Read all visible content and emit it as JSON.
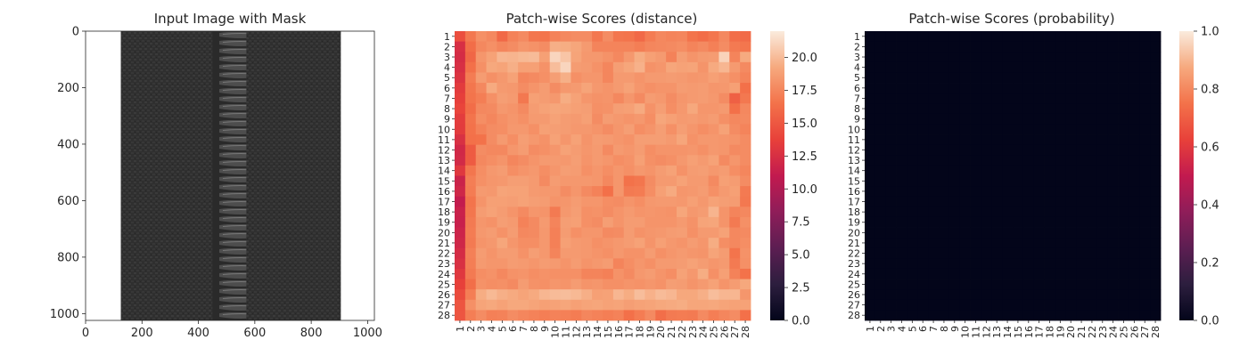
{
  "chart_data": [
    {
      "type": "image",
      "title": "Input Image with Mask",
      "xticks": [
        "0",
        "200",
        "400",
        "600",
        "800",
        "1000"
      ],
      "yticks": [
        "0",
        "200",
        "400",
        "600",
        "800",
        "1000"
      ],
      "xlim": [
        0,
        1024
      ],
      "ylim": [
        1024,
        0
      ],
      "image_content": "zipper-photo",
      "zipper_x_range": [
        125,
        905
      ],
      "teeth_x_range": [
        450,
        570
      ]
    },
    {
      "type": "heatmap",
      "title": "Patch-wise Scores (distance)",
      "rows": 28,
      "cols": 28,
      "xticklabels": [
        "1",
        "2",
        "3",
        "4",
        "5",
        "6",
        "7",
        "8",
        "9",
        "10",
        "11",
        "12",
        "13",
        "14",
        "15",
        "16",
        "17",
        "18",
        "19",
        "20",
        "21",
        "22",
        "23",
        "24",
        "25",
        "26",
        "27",
        "28"
      ],
      "yticklabels": [
        "1",
        "2",
        "3",
        "4",
        "5",
        "6",
        "7",
        "8",
        "9",
        "10",
        "11",
        "12",
        "13",
        "14",
        "15",
        "16",
        "17",
        "18",
        "19",
        "20",
        "21",
        "22",
        "23",
        "24",
        "25",
        "26",
        "27",
        "28"
      ],
      "colorbar": {
        "min": 0,
        "max": 22,
        "ticks": [
          "0.0",
          "2.5",
          "5.0",
          "7.5",
          "10.0",
          "12.5",
          "15.0",
          "17.5",
          "20.0"
        ]
      },
      "values": [
        [
          14.5,
          16.8,
          18.0,
          17.6,
          16.0,
          17.3,
          17.7,
          16.7,
          16.6,
          17.3,
          17.6,
          17.8,
          17.8,
          16.8,
          17.8,
          16.7,
          16.6,
          16.0,
          17.0,
          17.6,
          17.4,
          17.5,
          16.6,
          16.2,
          16.7,
          17.6,
          16.3,
          16.1
        ],
        [
          12.5,
          16.2,
          17.6,
          18.0,
          17.5,
          17.8,
          18.3,
          18.1,
          17.8,
          19.5,
          19.4,
          19.1,
          18.5,
          17.4,
          17.4,
          17.4,
          17.4,
          17.1,
          17.5,
          17.6,
          17.7,
          17.9,
          17.4,
          17.7,
          17.2,
          17.8,
          16.9,
          16.7
        ],
        [
          12.3,
          15.8,
          18.3,
          18.9,
          19.8,
          19.7,
          19.9,
          20.0,
          18.8,
          21.1,
          20.4,
          19.0,
          18.4,
          18.4,
          18.1,
          17.6,
          18.4,
          19.4,
          18.8,
          18.5,
          17.3,
          18.7,
          18.2,
          18.5,
          18.6,
          21.0,
          17.4,
          19.3
        ],
        [
          12.5,
          16.4,
          18.0,
          19.2,
          19.0,
          19.5,
          18.8,
          18.8,
          18.1,
          20.1,
          21.1,
          18.6,
          18.5,
          18.1,
          17.5,
          18.7,
          19.1,
          19.6,
          18.1,
          18.3,
          19.1,
          18.9,
          19.0,
          18.2,
          19.3,
          19.8,
          18.5,
          17.7
        ],
        [
          12.8,
          17.0,
          18.6,
          18.0,
          18.4,
          18.9,
          17.5,
          17.7,
          18.0,
          18.7,
          19.5,
          18.0,
          18.3,
          18.3,
          17.5,
          18.5,
          18.5,
          18.2,
          18.5,
          18.5,
          18.6,
          18.5,
          18.3,
          18.4,
          18.8,
          18.5,
          18.0,
          17.4
        ],
        [
          13.3,
          16.7,
          17.6,
          19.3,
          18.5,
          18.4,
          17.8,
          18.2,
          18.6,
          17.8,
          18.4,
          18.5,
          19.0,
          18.4,
          18.2,
          18.5,
          18.9,
          18.3,
          18.0,
          18.2,
          18.2,
          18.6,
          18.5,
          18.6,
          18.3,
          18.4,
          18.8,
          16.4
        ],
        [
          13.6,
          16.6,
          17.1,
          18.0,
          18.7,
          18.5,
          16.8,
          18.8,
          18.6,
          18.4,
          19.4,
          18.9,
          18.3,
          18.1,
          18.2,
          17.6,
          18.3,
          17.7,
          18.6,
          18.4,
          17.8,
          18.3,
          18.5,
          18.6,
          18.4,
          17.8,
          15.5,
          16.8
        ],
        [
          13.9,
          16.2,
          17.6,
          17.7,
          18.4,
          18.2,
          17.7,
          18.6,
          18.9,
          19.1,
          19.0,
          18.8,
          18.7,
          18.0,
          18.1,
          18.7,
          18.8,
          19.3,
          18.1,
          18.7,
          17.9,
          18.4,
          19.2,
          18.3,
          18.3,
          18.5,
          16.4,
          17.6
        ],
        [
          13.4,
          16.6,
          17.9,
          17.5,
          18.0,
          18.3,
          18.0,
          18.5,
          18.5,
          18.9,
          18.6,
          18.5,
          18.8,
          17.8,
          18.6,
          18.4,
          18.2,
          18.4,
          17.9,
          19.1,
          18.8,
          18.5,
          18.6,
          18.4,
          18.6,
          18.0,
          17.6,
          17.7
        ],
        [
          13.3,
          16.5,
          17.3,
          17.8,
          17.9,
          18.4,
          18.4,
          18.0,
          18.8,
          18.7,
          18.6,
          18.4,
          18.4,
          18.2,
          17.8,
          18.3,
          18.7,
          17.9,
          18.2,
          18.7,
          18.0,
          18.7,
          18.3,
          17.9,
          18.2,
          18.9,
          17.8,
          17.4
        ],
        [
          12.6,
          16.4,
          16.5,
          17.8,
          18.5,
          17.9,
          18.7,
          18.4,
          18.1,
          18.9,
          18.3,
          18.9,
          18.2,
          18.6,
          18.5,
          18.3,
          18.1,
          18.7,
          18.7,
          18.7,
          18.5,
          19.1,
          18.1,
          18.4,
          18.4,
          18.3,
          18.2,
          17.8
        ],
        [
          12.0,
          15.2,
          17.8,
          17.6,
          17.6,
          18.3,
          18.6,
          17.8,
          18.0,
          18.3,
          18.9,
          18.6,
          18.3,
          18.5,
          17.7,
          18.5,
          18.3,
          18.6,
          17.9,
          18.2,
          18.2,
          18.2,
          18.3,
          18.0,
          18.4,
          18.3,
          17.7,
          17.8
        ],
        [
          12.1,
          15.2,
          17.6,
          17.9,
          18.2,
          17.5,
          17.8,
          18.2,
          18.5,
          18.5,
          18.4,
          18.7,
          18.2,
          18.5,
          18.3,
          17.9,
          18.1,
          18.8,
          18.0,
          17.8,
          18.0,
          18.4,
          18.8,
          18.5,
          18.9,
          17.7,
          18.3,
          17.8
        ],
        [
          13.1,
          16.7,
          17.9,
          18.4,
          18.6,
          17.9,
          18.2,
          18.4,
          17.9,
          18.3,
          18.7,
          18.6,
          18.0,
          18.3,
          17.9,
          18.3,
          18.0,
          18.4,
          18.2,
          18.6,
          18.9,
          18.1,
          18.6,
          18.7,
          18.4,
          18.6,
          17.9,
          17.5
        ],
        [
          11.6,
          17.1,
          18.0,
          18.3,
          18.4,
          18.7,
          18.7,
          18.5,
          17.7,
          18.6,
          18.4,
          18.4,
          18.4,
          18.3,
          17.6,
          18.3,
          16.5,
          16.7,
          17.8,
          18.5,
          18.5,
          18.9,
          18.5,
          18.5,
          17.7,
          18.8,
          18.6,
          17.8
        ],
        [
          11.9,
          17.0,
          18.5,
          18.4,
          19.0,
          18.9,
          18.9,
          18.5,
          18.4,
          18.4,
          17.8,
          18.3,
          17.7,
          17.3,
          16.4,
          18.3,
          16.9,
          17.0,
          17.9,
          18.8,
          19.3,
          18.3,
          18.4,
          18.6,
          18.0,
          18.5,
          18.8,
          16.9
        ],
        [
          11.1,
          16.6,
          18.2,
          18.8,
          18.8,
          18.7,
          18.9,
          18.7,
          18.6,
          18.2,
          18.3,
          18.6,
          18.3,
          18.3,
          17.9,
          17.8,
          18.2,
          17.9,
          18.4,
          18.5,
          18.5,
          18.4,
          18.8,
          18.4,
          18.9,
          18.7,
          18.6,
          16.8
        ],
        [
          11.5,
          16.7,
          18.6,
          18.9,
          18.6,
          18.2,
          17.7,
          18.3,
          18.2,
          16.9,
          18.4,
          18.7,
          18.0,
          18.1,
          17.8,
          18.2,
          18.5,
          18.2,
          18.3,
          18.2,
          18.1,
          19.1,
          18.4,
          18.6,
          19.7,
          18.2,
          17.4,
          17.6
        ],
        [
          11.4,
          16.9,
          18.3,
          18.1,
          18.7,
          18.5,
          17.3,
          17.7,
          18.5,
          17.4,
          18.7,
          18.8,
          18.0,
          17.8,
          18.7,
          18.2,
          18.6,
          18.6,
          18.2,
          18.2,
          18.2,
          18.5,
          18.1,
          19.0,
          19.1,
          18.2,
          16.9,
          18.0
        ],
        [
          11.7,
          17.0,
          18.4,
          18.6,
          18.1,
          18.6,
          17.6,
          17.7,
          18.4,
          17.2,
          18.6,
          18.0,
          18.3,
          18.3,
          17.7,
          17.8,
          18.6,
          18.1,
          18.3,
          18.4,
          18.6,
          18.7,
          18.0,
          18.5,
          18.5,
          18.9,
          17.6,
          17.7
        ],
        [
          11.9,
          16.9,
          18.2,
          18.4,
          19.1,
          18.3,
          17.9,
          17.9,
          18.4,
          17.2,
          18.8,
          18.5,
          18.4,
          18.0,
          18.2,
          18.4,
          18.6,
          18.9,
          18.2,
          18.8,
          18.4,
          18.2,
          18.6,
          18.3,
          19.4,
          17.9,
          17.6,
          17.9
        ],
        [
          12.3,
          17.2,
          18.6,
          18.2,
          18.6,
          18.6,
          18.1,
          18.7,
          18.4,
          17.4,
          18.5,
          18.5,
          18.4,
          18.2,
          18.0,
          18.4,
          18.1,
          18.1,
          18.6,
          18.0,
          18.3,
          18.5,
          18.3,
          18.2,
          19.0,
          18.6,
          16.6,
          18.1
        ],
        [
          12.6,
          17.1,
          18.5,
          18.3,
          18.3,
          18.6,
          18.5,
          18.3,
          18.6,
          18.5,
          18.2,
          18.6,
          18.2,
          18.4,
          18.6,
          17.4,
          17.9,
          18.3,
          18.0,
          18.5,
          18.5,
          18.6,
          18.9,
          18.6,
          18.3,
          18.5,
          16.9,
          18.0
        ],
        [
          13.1,
          16.9,
          17.9,
          18.1,
          17.6,
          18.1,
          18.2,
          17.9,
          18.1,
          18.0,
          18.0,
          18.0,
          17.4,
          17.4,
          17.2,
          18.1,
          17.7,
          18.4,
          18.6,
          18.2,
          17.9,
          18.9,
          18.4,
          19.4,
          18.0,
          18.8,
          17.3,
          16.5
        ],
        [
          13.7,
          16.3,
          18.1,
          17.9,
          18.0,
          17.7,
          18.6,
          18.1,
          18.0,
          18.3,
          18.2,
          18.6,
          18.2,
          18.3,
          18.0,
          18.0,
          18.2,
          18.1,
          18.3,
          18.1,
          18.7,
          18.6,
          18.2,
          18.5,
          18.9,
          18.2,
          18.6,
          19.2
        ],
        [
          14.3,
          17.1,
          19.4,
          19.9,
          19.5,
          19.3,
          19.0,
          19.3,
          19.8,
          20.0,
          20.1,
          19.9,
          19.5,
          18.8,
          18.9,
          19.8,
          19.4,
          20.1,
          19.6,
          20.0,
          19.8,
          19.2,
          19.2,
          19.5,
          20.1,
          19.8,
          19.8,
          18.3
        ],
        [
          14.9,
          18.0,
          19.0,
          19.2,
          18.9,
          19.2,
          19.2,
          19.0,
          18.8,
          18.9,
          19.1,
          18.8,
          19.0,
          19.1,
          18.9,
          19.0,
          18.7,
          18.9,
          19.0,
          19.2,
          19.3,
          19.4,
          19.1,
          19.1,
          19.2,
          19.0,
          18.9,
          18.9
        ],
        [
          14.9,
          17.1,
          17.8,
          17.2,
          17.3,
          17.8,
          17.5,
          17.3,
          17.1,
          17.3,
          17.2,
          17.0,
          17.5,
          17.3,
          17.1,
          17.3,
          16.4,
          17.0,
          17.7,
          16.3,
          16.9,
          17.0,
          16.9,
          17.7,
          17.1,
          17.5,
          17.8,
          16.4
        ]
      ]
    },
    {
      "type": "heatmap",
      "title": "Patch-wise Scores (probability)",
      "rows": 28,
      "cols": 28,
      "xticklabels": [
        "1",
        "2",
        "3",
        "4",
        "5",
        "6",
        "7",
        "8",
        "9",
        "10",
        "11",
        "12",
        "13",
        "14",
        "15",
        "16",
        "17",
        "18",
        "19",
        "20",
        "21",
        "22",
        "23",
        "24",
        "25",
        "26",
        "27",
        "28"
      ],
      "yticklabels": [
        "1",
        "2",
        "3",
        "4",
        "5",
        "6",
        "7",
        "8",
        "9",
        "10",
        "11",
        "12",
        "13",
        "14",
        "15",
        "16",
        "17",
        "18",
        "19",
        "20",
        "21",
        "22",
        "23",
        "24",
        "25",
        "26",
        "27",
        "28"
      ],
      "colorbar": {
        "min": 0,
        "max": 1,
        "ticks": [
          "0.0",
          "0.2",
          "0.4",
          "0.6",
          "0.8",
          "1.0"
        ]
      },
      "fill_value": 0
    }
  ]
}
